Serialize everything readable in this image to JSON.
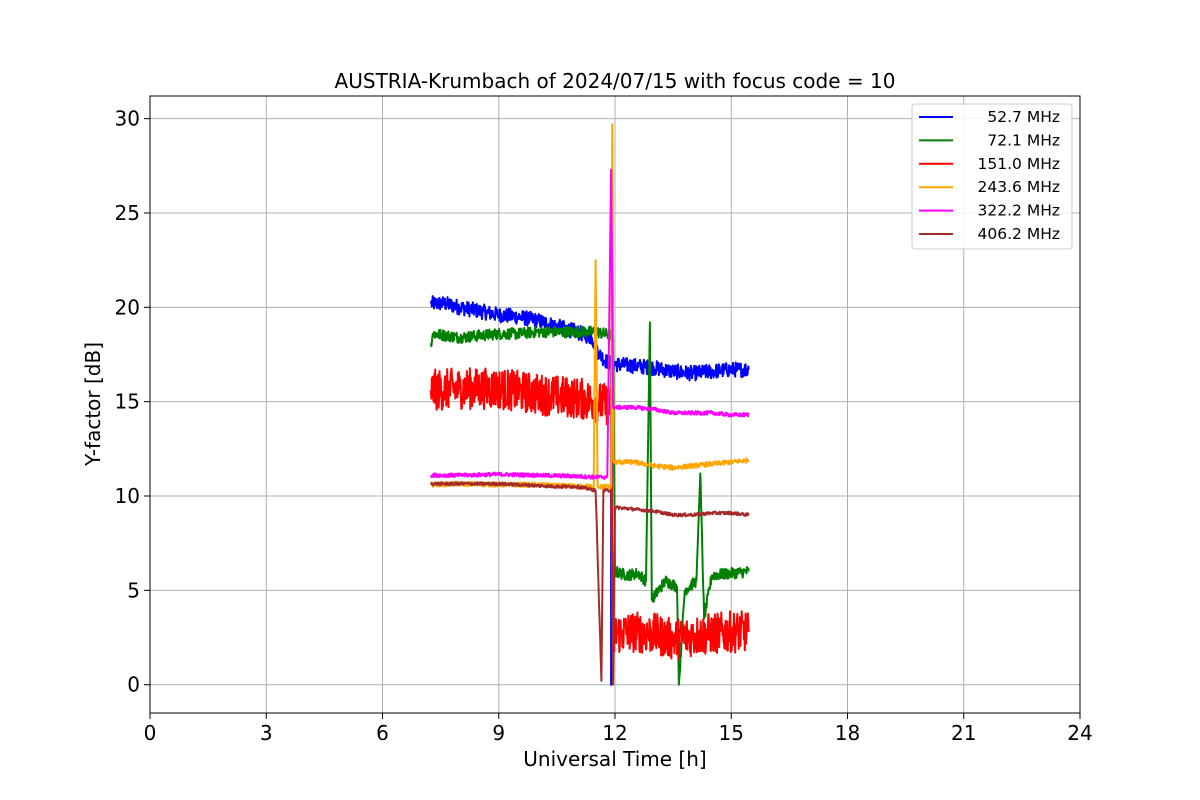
{
  "chart_data": {
    "type": "line",
    "title": "AUSTRIA-Krumbach of 2024/07/15 with focus code = 10",
    "xlabel": "Universal Time [h]",
    "ylabel": "Y-factor [dB]",
    "xlim": [
      0,
      24
    ],
    "ylim": [
      -1.5,
      31.2
    ],
    "xticks": [
      0,
      3,
      6,
      9,
      12,
      15,
      18,
      21,
      24
    ],
    "yticks": [
      0,
      5,
      10,
      15,
      20,
      25,
      30
    ],
    "grid": true,
    "legend_position": "top-right",
    "series": [
      {
        "name": " 52.7 MHz",
        "color": "#0000ff",
        "noise": 0.4,
        "points": [
          [
            7.25,
            20.2
          ],
          [
            7.6,
            20.2
          ],
          [
            8.0,
            20.0
          ],
          [
            8.5,
            19.8
          ],
          [
            9.0,
            19.6
          ],
          [
            9.5,
            19.5
          ],
          [
            10.0,
            19.3
          ],
          [
            10.5,
            19.0
          ],
          [
            11.0,
            18.7
          ],
          [
            11.4,
            18.4
          ],
          [
            11.6,
            17.5
          ],
          [
            11.85,
            17.0
          ],
          [
            11.9,
            17.2
          ],
          [
            11.9,
            0.0
          ],
          [
            11.93,
            17.0
          ],
          [
            12.5,
            16.9
          ],
          [
            13.0,
            16.8
          ],
          [
            13.5,
            16.6
          ],
          [
            14.0,
            16.5
          ],
          [
            14.5,
            16.6
          ],
          [
            15.0,
            16.7
          ],
          [
            15.45,
            16.7
          ]
        ]
      },
      {
        "name": " 72.1 MHz",
        "color": "#008000",
        "noise": 0.3,
        "points": [
          [
            7.25,
            18.1
          ],
          [
            7.3,
            18.6
          ],
          [
            8.0,
            18.4
          ],
          [
            8.5,
            18.5
          ],
          [
            9.0,
            18.6
          ],
          [
            9.5,
            18.6
          ],
          [
            10.0,
            18.7
          ],
          [
            10.5,
            18.7
          ],
          [
            11.0,
            18.7
          ],
          [
            11.5,
            18.7
          ],
          [
            11.95,
            18.5
          ],
          [
            12.0,
            6.0
          ],
          [
            12.3,
            5.8
          ],
          [
            12.6,
            5.9
          ],
          [
            12.8,
            5.5
          ],
          [
            12.9,
            19.2
          ],
          [
            12.95,
            4.5
          ],
          [
            13.3,
            5.5
          ],
          [
            13.6,
            5.2
          ],
          [
            13.65,
            0.0
          ],
          [
            13.8,
            5.0
          ],
          [
            14.1,
            5.5
          ],
          [
            14.2,
            11.2
          ],
          [
            14.3,
            3.5
          ],
          [
            14.5,
            5.8
          ],
          [
            15.0,
            5.9
          ],
          [
            15.45,
            6.0
          ]
        ]
      },
      {
        "name": "151.0 MHz",
        "color": "#ff0000",
        "noise": 1.1,
        "points": [
          [
            7.25,
            15.6
          ],
          [
            8.0,
            15.7
          ],
          [
            9.0,
            15.7
          ],
          [
            10.0,
            15.4
          ],
          [
            11.0,
            15.2
          ],
          [
            11.5,
            15.0
          ],
          [
            11.9,
            14.8
          ],
          [
            11.95,
            2.0
          ],
          [
            12.0,
            2.7
          ],
          [
            12.5,
            2.8
          ],
          [
            13.0,
            2.7
          ],
          [
            13.5,
            2.4
          ],
          [
            14.0,
            2.6
          ],
          [
            14.5,
            2.7
          ],
          [
            15.0,
            2.8
          ],
          [
            15.45,
            2.8
          ]
        ]
      },
      {
        "name": "243.6 MHz",
        "color": "#ffa500",
        "noise": 0.12,
        "points": [
          [
            7.25,
            10.6
          ],
          [
            8.0,
            10.65
          ],
          [
            9.0,
            10.6
          ],
          [
            10.0,
            10.6
          ],
          [
            11.0,
            10.5
          ],
          [
            11.45,
            10.5
          ],
          [
            11.5,
            22.5
          ],
          [
            11.55,
            10.5
          ],
          [
            11.9,
            10.5
          ],
          [
            11.93,
            29.7
          ],
          [
            11.96,
            11.8
          ],
          [
            12.5,
            11.8
          ],
          [
            13.0,
            11.6
          ],
          [
            13.5,
            11.5
          ],
          [
            14.0,
            11.6
          ],
          [
            14.5,
            11.7
          ],
          [
            15.0,
            11.8
          ],
          [
            15.45,
            11.9
          ]
        ]
      },
      {
        "name": "322.2 MHz",
        "color": "#ff00ff",
        "noise": 0.1,
        "points": [
          [
            7.25,
            11.1
          ],
          [
            8.0,
            11.1
          ],
          [
            9.0,
            11.15
          ],
          [
            10.0,
            11.1
          ],
          [
            11.0,
            11.05
          ],
          [
            11.5,
            11.0
          ],
          [
            11.8,
            11.0
          ],
          [
            11.9,
            27.3
          ],
          [
            11.95,
            14.7
          ],
          [
            12.5,
            14.7
          ],
          [
            13.0,
            14.6
          ],
          [
            13.5,
            14.4
          ],
          [
            14.0,
            14.4
          ],
          [
            14.5,
            14.4
          ],
          [
            15.0,
            14.3
          ],
          [
            15.45,
            14.3
          ]
        ]
      },
      {
        "name": "406.2 MHz",
        "color": "#a52a2a",
        "noise": 0.08,
        "points": [
          [
            7.25,
            10.65
          ],
          [
            8.0,
            10.65
          ],
          [
            9.0,
            10.65
          ],
          [
            10.0,
            10.55
          ],
          [
            10.5,
            10.5
          ],
          [
            11.0,
            10.5
          ],
          [
            11.5,
            10.3
          ],
          [
            11.65,
            0.2
          ],
          [
            11.7,
            10.3
          ],
          [
            11.9,
            10.3
          ],
          [
            11.95,
            0.0
          ],
          [
            12.0,
            9.4
          ],
          [
            12.5,
            9.3
          ],
          [
            13.0,
            9.2
          ],
          [
            13.5,
            9.0
          ],
          [
            14.0,
            9.0
          ],
          [
            14.5,
            9.1
          ],
          [
            15.0,
            9.1
          ],
          [
            15.45,
            9.0
          ]
        ]
      }
    ]
  }
}
